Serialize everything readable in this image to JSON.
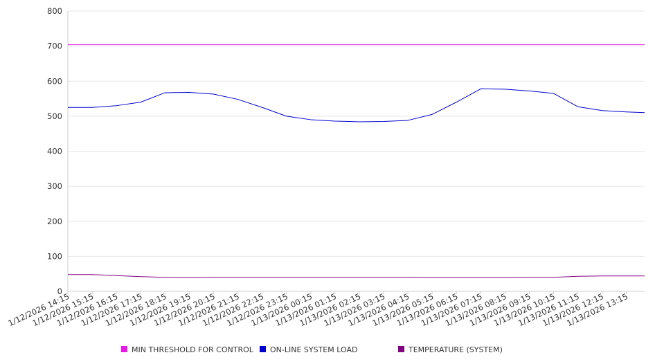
{
  "chart_data": {
    "type": "line",
    "title": "",
    "xlabel": "",
    "ylabel": "",
    "ylim": [
      0,
      800
    ],
    "yticks": [
      0,
      100,
      200,
      300,
      400,
      500,
      600,
      700,
      800
    ],
    "x_tick_labels": [
      "1/12/2026 14:15",
      "1/12/2026 15:15",
      "1/12/2026 16:15",
      "1/12/2026 17:15",
      "1/12/2026 18:15",
      "1/12/2026 19:15",
      "1/12/2026 20:15",
      "1/12/2026 21:15",
      "1/12/2026 22:15",
      "1/12/2026 23:15",
      "1/13/2026 00:15",
      "1/13/2026 01:15",
      "1/13/2026 02:15",
      "1/13/2026 03:15",
      "1/13/2026 04:15",
      "1/13/2026 05:15",
      "1/13/2026 06:15",
      "1/13/2026 07:15",
      "1/13/2026 08:15",
      "1/13/2026 09:15",
      "1/13/2026 10:15",
      "1/13/2026 11:15",
      "1/13/2026 12:15",
      "1/13/2026 13:15"
    ],
    "x_hours": [
      0,
      1,
      2,
      3,
      4,
      5,
      6,
      7,
      8,
      9,
      10,
      11,
      12,
      13,
      14,
      15,
      16,
      17,
      18,
      19,
      20,
      21,
      22,
      23,
      23.75
    ],
    "grid": "horizontal",
    "legend": "bottom",
    "series": [
      {
        "name": "MIN THRESHOLD FOR CONTROL",
        "color": "#e619e6",
        "values": [
          704,
          704,
          704,
          704,
          704,
          704,
          704,
          704,
          704,
          704,
          704,
          704,
          704,
          704,
          704,
          704,
          704,
          704,
          704,
          704,
          704,
          704,
          704,
          704,
          704
        ]
      },
      {
        "name": "ON-LINE SYSTEM LOAD",
        "color": "#0000cc",
        "values": [
          525,
          525,
          530,
          540,
          567,
          568,
          563,
          548,
          525,
          500,
          490,
          486,
          484,
          485,
          488,
          505,
          540,
          578,
          577,
          572,
          565,
          527,
          516,
          512,
          510
        ]
      },
      {
        "name": "TEMPERATURE (SYSTEM)",
        "color": "#800080",
        "values": [
          48,
          48,
          45,
          42,
          40,
          39,
          40,
          40,
          40,
          40,
          40,
          40,
          40,
          40,
          40,
          39,
          39,
          39,
          39,
          40,
          40,
          43,
          44,
          44,
          44
        ]
      }
    ]
  }
}
